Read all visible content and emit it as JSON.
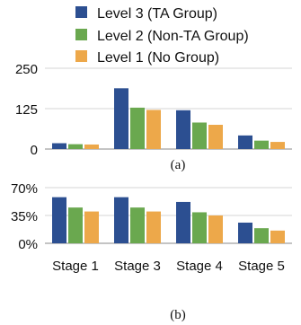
{
  "legend": [
    {
      "name": "Level 3 (TA Group)",
      "color": "#2c4f91"
    },
    {
      "name": "Level 2 (Non-TA Group)",
      "color": "#6aa84f"
    },
    {
      "name": "Level 1 (No Group)",
      "color": "#eda84a"
    }
  ],
  "chart_data": [
    {
      "type": "bar",
      "caption": "(a)",
      "categories": [
        "Stage 1",
        "Stage 3",
        "Stage 4",
        "Stage 5"
      ],
      "series": [
        {
          "name": "Level 3 (TA Group)",
          "color": "#2c4f91",
          "values": [
            18,
            188,
            120,
            42
          ]
        },
        {
          "name": "Level 2 (Non-TA Group)",
          "color": "#6aa84f",
          "values": [
            15,
            128,
            82,
            26
          ]
        },
        {
          "name": "Level 1 (No Group)",
          "color": "#eda84a",
          "values": [
            14,
            121,
            75,
            22
          ]
        }
      ],
      "ylim": [
        0,
        250
      ],
      "yticks": [
        "0",
        "125",
        "250"
      ],
      "yticks_values": [
        0,
        125,
        250
      ],
      "grid": true,
      "legend_position": "top"
    },
    {
      "type": "bar",
      "caption": "(b)",
      "categories": [
        "Stage 1",
        "Stage 3",
        "Stage 4",
        "Stage 5"
      ],
      "series": [
        {
          "name": "Level 3 (TA Group)",
          "color": "#2c4f91",
          "values": [
            58,
            58,
            52,
            26
          ]
        },
        {
          "name": "Level 2 (Non-TA Group)",
          "color": "#6aa84f",
          "values": [
            45,
            45,
            39,
            19
          ]
        },
        {
          "name": "Level 1 (No Group)",
          "color": "#eda84a",
          "values": [
            40,
            40,
            35,
            16
          ]
        }
      ],
      "ylim": [
        0,
        70
      ],
      "yticks": [
        "0%",
        "35%",
        "70%"
      ],
      "yticks_values": [
        0,
        35,
        70
      ],
      "grid": true,
      "legend_position": "top"
    }
  ]
}
